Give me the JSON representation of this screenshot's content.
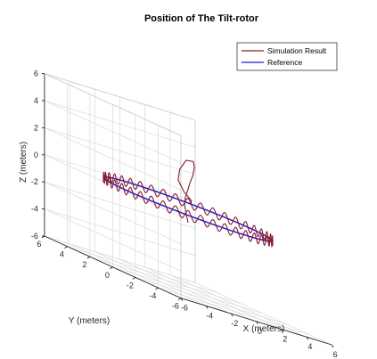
{
  "chart_data": {
    "type": "line",
    "projection": "3d",
    "title": "Position of The Tilt-rotor",
    "xlabel": "X (meters)",
    "ylabel": "Y (meters)",
    "zlabel": "Z (meters)",
    "xlim": [
      -6,
      6
    ],
    "ylim": [
      -6,
      6
    ],
    "zlim": [
      -6,
      6
    ],
    "xticks": [
      -6,
      -4,
      -2,
      0,
      2,
      4,
      6
    ],
    "yticks": [
      -6,
      -4,
      -2,
      0,
      2,
      4,
      6
    ],
    "zticks": [
      -6,
      -4,
      -2,
      0,
      2,
      4,
      6
    ],
    "grid": true,
    "legend_position": "top-right",
    "series": [
      {
        "name": "Simulation Result",
        "color": "#8b1a2b",
        "description_points": {
          "start": [
            0,
            0,
            -1
          ],
          "circle_radius": 5,
          "circle_z": 0,
          "z_oscillation_amplitude": 0.35
        }
      },
      {
        "name": "Reference",
        "color": "#1f1fd6",
        "circle_radius": 5,
        "circle_z": 0
      }
    ]
  }
}
